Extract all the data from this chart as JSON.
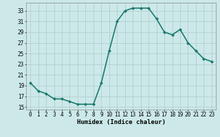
{
  "x": [
    0,
    1,
    2,
    3,
    4,
    5,
    6,
    7,
    8,
    9,
    10,
    11,
    12,
    13,
    14,
    15,
    16,
    17,
    18,
    19,
    20,
    21,
    22,
    23
  ],
  "y": [
    19.5,
    18.0,
    17.5,
    16.5,
    16.5,
    16.0,
    15.5,
    15.5,
    15.5,
    19.5,
    25.5,
    31.0,
    33.0,
    33.5,
    33.5,
    33.5,
    31.5,
    29.0,
    28.5,
    29.5,
    27.0,
    25.5,
    24.0,
    23.5
  ],
  "line_color": "#1a7a6e",
  "marker": "D",
  "markersize": 2.0,
  "bg_color": "#cce8e8",
  "grid_color": "#b0d0d0",
  "xlabel": "Humidex (Indice chaleur)",
  "ylim": [
    14.5,
    34.5
  ],
  "xlim": [
    -0.5,
    23.5
  ],
  "yticks": [
    15,
    17,
    19,
    21,
    23,
    25,
    27,
    29,
    31,
    33
  ],
  "xticks": [
    0,
    1,
    2,
    3,
    4,
    5,
    6,
    7,
    8,
    9,
    10,
    11,
    12,
    13,
    14,
    15,
    16,
    17,
    18,
    19,
    20,
    21,
    22,
    23
  ],
  "xtick_labels": [
    "0",
    "1",
    "2",
    "3",
    "4",
    "5",
    "6",
    "7",
    "8",
    "9",
    "10",
    "11",
    "12",
    "13",
    "14",
    "15",
    "16",
    "17",
    "18",
    "19",
    "20",
    "21",
    "22",
    "23"
  ],
  "linewidth": 1.2,
  "label_fontsize": 6.5,
  "tick_fontsize": 5.5
}
